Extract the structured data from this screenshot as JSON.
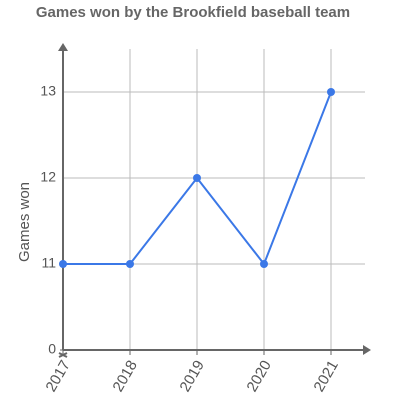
{
  "chart_data": {
    "type": "line",
    "title": "Games won by the Brookfield baseball team",
    "y_label": "Games won",
    "categories": [
      "2017",
      "2018",
      "2019",
      "2020",
      "2021"
    ],
    "series": [
      {
        "name": "Games won",
        "color": "#3b78e7",
        "values": [
          11,
          11,
          12,
          11,
          13
        ]
      }
    ],
    "ylim": [
      0,
      13.5
    ],
    "yticks": [
      0,
      11,
      12,
      13
    ],
    "y_axis_break": true,
    "grid": true
  }
}
